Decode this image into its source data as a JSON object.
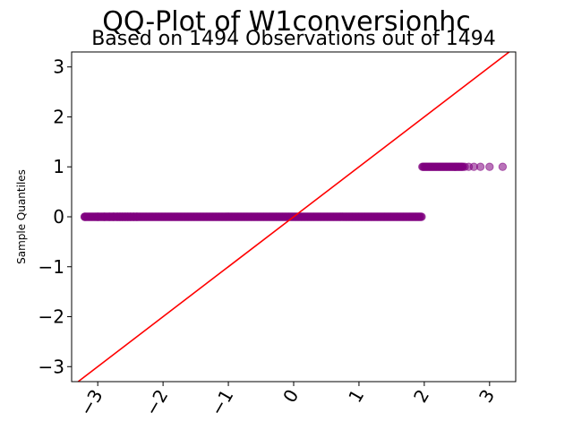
{
  "chart_data": {
    "type": "scatter",
    "title": "QQ-Plot of W1conversionhc",
    "subtitle": "Based on 1494 Observations out of 1494",
    "xlabel": "",
    "ylabel": "Sample Quantiles",
    "xlim": [
      -3.4,
      3.4
    ],
    "ylim": [
      -3.3,
      3.3
    ],
    "xticks": [
      -3,
      -2,
      -1,
      0,
      1,
      2,
      3
    ],
    "yticks": [
      -3,
      -2,
      -1,
      0,
      1,
      2,
      3
    ],
    "xtick_labels": [
      "−3",
      "−2",
      "−1",
      "0",
      "1",
      "2",
      "3"
    ],
    "ytick_labels": [
      "−3",
      "−2",
      "−1",
      "0",
      "1",
      "2",
      "3"
    ],
    "grid": false,
    "n_observations": 1494,
    "series": [
      {
        "name": "sample points",
        "color": "#800080",
        "opacity": 0.55,
        "groups": [
          {
            "y": 0,
            "x_range": [
              -3.2,
              1.97
            ],
            "x": [
              -3.2,
              -3.0,
              -2.9,
              -2.82,
              -2.76,
              -2.7,
              -2.66,
              -2.62,
              -2.58,
              -2.54,
              -2.5,
              -2.45,
              -2.4
            ]
          },
          {
            "y": 1,
            "x_range": [
              1.97,
              2.6
            ],
            "x": [
              2.62,
              2.68,
              2.76,
              2.86,
              3.0,
              3.2
            ]
          }
        ]
      },
      {
        "name": "reference line",
        "type": "line",
        "color": "#ff0000",
        "points": [
          [
            -3.4,
            -3.4
          ],
          [
            3.4,
            3.4
          ]
        ]
      }
    ]
  }
}
